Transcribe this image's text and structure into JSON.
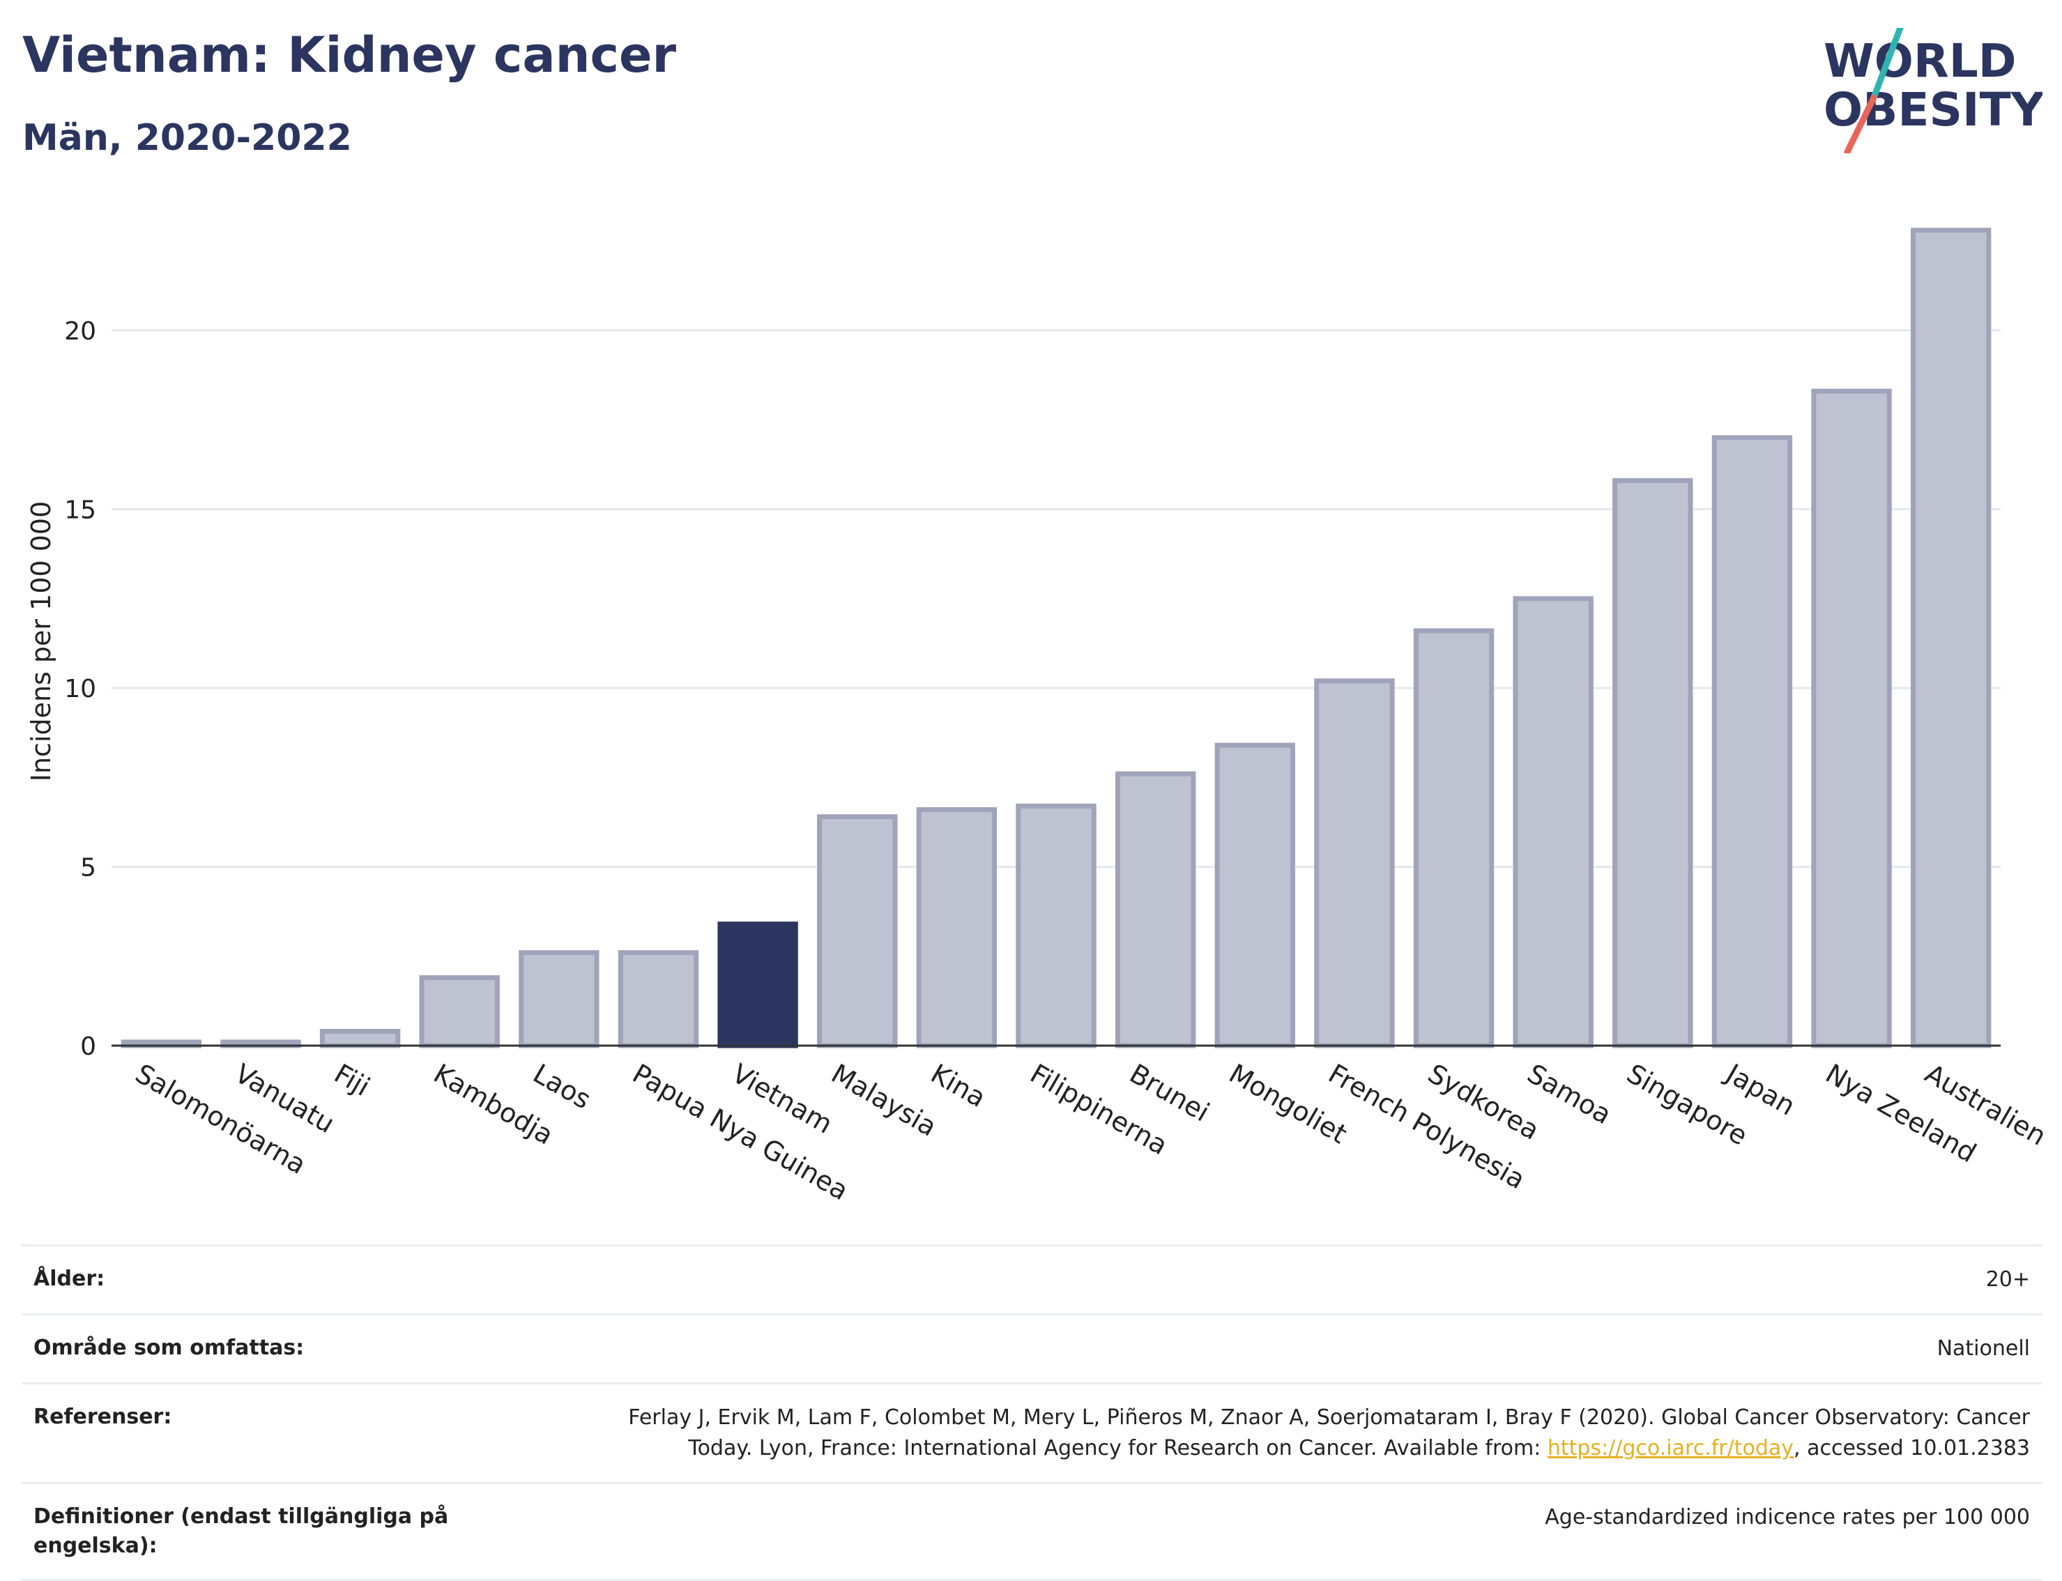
{
  "header": {
    "title": "Vietnam: Kidney cancer",
    "subtitle": "Män, 2020-2022",
    "logo_line1": "WORLD",
    "logo_line2": "OBESITY"
  },
  "colors": {
    "highlight": "#2b3560",
    "bar": "#bfc2d0",
    "bar_border": "#9fa4ba",
    "logo_teal": "#2fb5b0",
    "logo_red": "#e8655a",
    "link": "#e8b021"
  },
  "chart_data": {
    "type": "bar",
    "ylabel": "Incidens per 100 000",
    "ylim": [
      0,
      23
    ],
    "yticks": [
      0,
      5,
      10,
      15,
      20
    ],
    "grid": true,
    "highlight": "Vietnam",
    "categories": [
      "Salomonöarna",
      "Vanuatu",
      "Fiji",
      "Kambodja",
      "Laos",
      "Papua Nya Guinea",
      "Vietnam",
      "Malaysia",
      "Kina",
      "Filippinerna",
      "Brunei",
      "Mongoliet",
      "French Polynesia",
      "Sydkorea",
      "Samoa",
      "Singapore",
      "Japan",
      "Nya Zeeland",
      "Australien"
    ],
    "values": [
      0.1,
      0.1,
      0.4,
      1.9,
      2.6,
      2.6,
      3.4,
      6.4,
      6.6,
      6.7,
      7.6,
      8.4,
      10.2,
      11.6,
      12.5,
      15.8,
      17.0,
      18.3,
      22.8
    ]
  },
  "info": {
    "age_label": "Ålder:",
    "age_value": "20+",
    "area_label": "Område som omfattas:",
    "area_value": "Nationell",
    "ref_label": "Referenser:",
    "ref_line1": "Ferlay J, Ervik M, Lam F, Colombet M, Mery L, Piñeros M, Znaor A, Soerjomataram I, Bray F (2020). Global Cancer Observatory: Cancer",
    "ref_line2_pre": "Today. Lyon, France: International Agency for Research on Cancer. Available from: ",
    "ref_link": "https://gco.iarc.fr/today",
    "ref_line2_post": ", accessed 10.01.2383",
    "def_label": "Definitioner (endast tillgängliga på engelska):",
    "def_value": "Age-standardized indicence rates per 100 000"
  }
}
